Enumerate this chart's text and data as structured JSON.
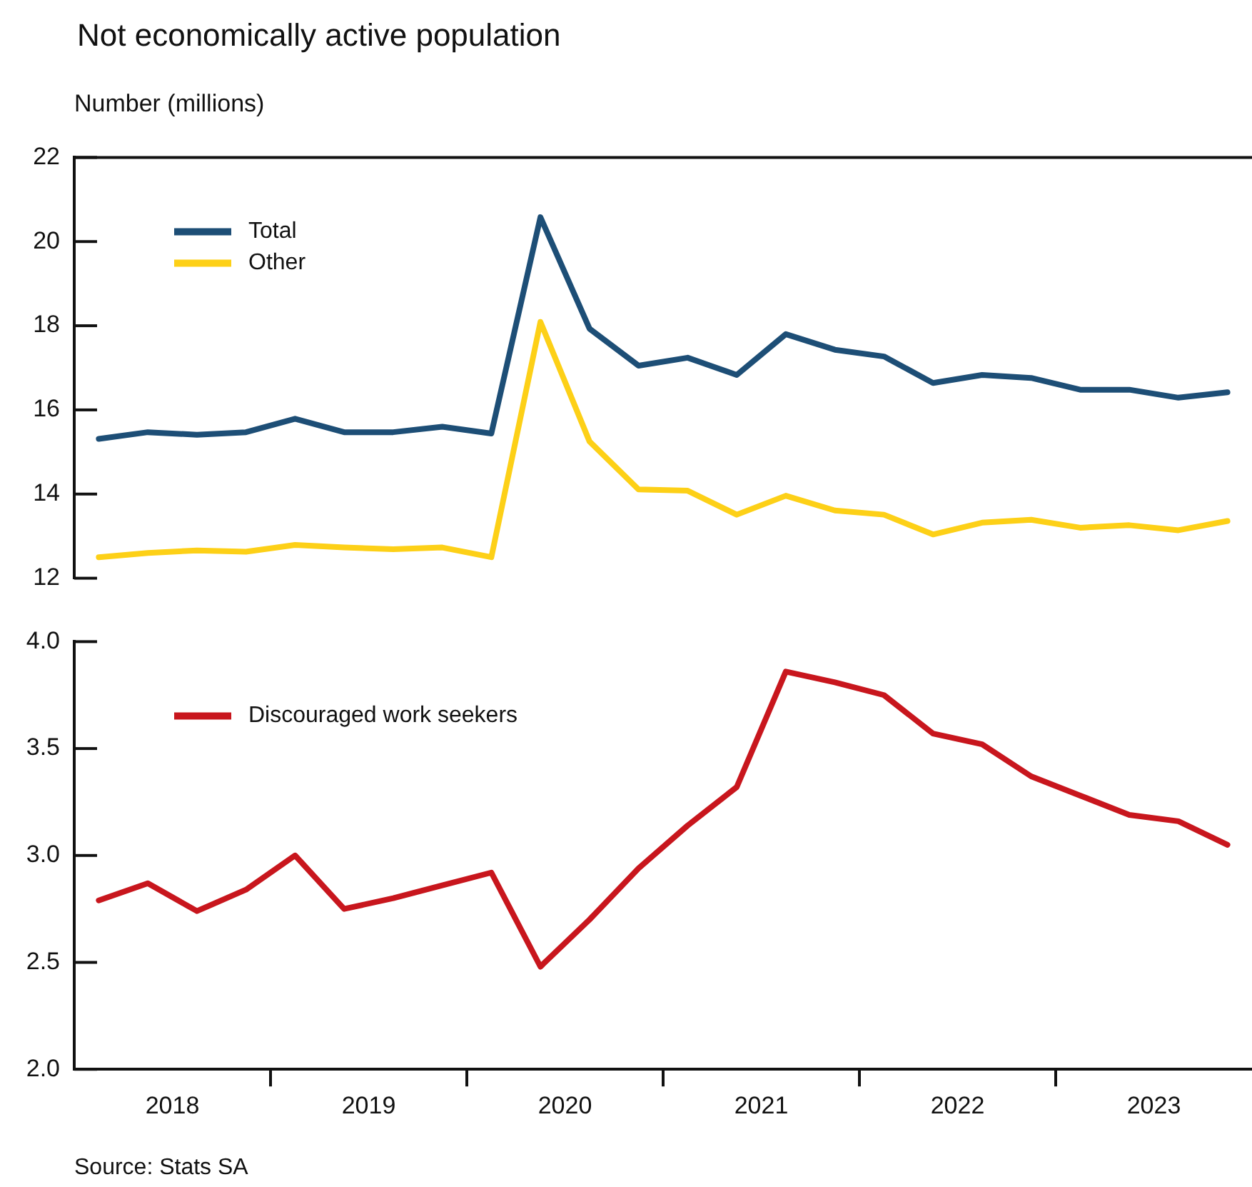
{
  "chart_data": [
    {
      "type": "line",
      "title": "Not economically active population",
      "ylabel": "Number (millions)",
      "x": [
        2018.125,
        2018.375,
        2018.625,
        2018.875,
        2019.125,
        2019.375,
        2019.625,
        2019.875,
        2020.125,
        2020.375,
        2020.625,
        2020.875,
        2021.125,
        2021.375,
        2021.625,
        2021.875,
        2022.125,
        2022.375,
        2022.625,
        2022.875,
        2023.125,
        2023.375,
        2023.625,
        2023.875
      ],
      "series": [
        {
          "name": "Total",
          "color": "#1d4e76",
          "values": [
            15.31,
            15.47,
            15.41,
            15.47,
            15.79,
            15.47,
            15.47,
            15.6,
            15.44,
            20.58,
            17.93,
            17.05,
            17.24,
            16.83,
            17.8,
            17.43,
            17.27,
            16.64,
            16.83,
            16.76,
            16.48,
            16.48,
            16.29,
            16.42
          ]
        },
        {
          "name": "Other",
          "color": "#fdd017",
          "values": [
            12.5,
            12.6,
            12.66,
            12.63,
            12.79,
            12.73,
            12.69,
            12.73,
            12.5,
            18.09,
            15.25,
            14.11,
            14.08,
            13.51,
            13.96,
            13.61,
            13.51,
            13.04,
            13.32,
            13.39,
            13.2,
            13.26,
            13.14,
            13.36
          ]
        }
      ],
      "xlim": [
        2018,
        2024
      ],
      "ylim": [
        12,
        22
      ],
      "yticks": [
        12,
        14,
        16,
        18,
        20,
        22
      ],
      "tick_labels": "y",
      "legend": "top left",
      "line_style": "solid",
      "marker": "none"
    },
    {
      "type": "line",
      "x": [
        2018.125,
        2018.375,
        2018.625,
        2018.875,
        2019.125,
        2019.375,
        2019.625,
        2019.875,
        2020.125,
        2020.375,
        2020.625,
        2020.875,
        2021.125,
        2021.375,
        2021.625,
        2021.875,
        2022.125,
        2022.375,
        2022.625,
        2022.875,
        2023.125,
        2023.375,
        2023.625,
        2023.875
      ],
      "series": [
        {
          "name": "Discouraged work seekers",
          "color": "#c8161d",
          "values": [
            2.79,
            2.87,
            2.74,
            2.84,
            3.0,
            2.75,
            2.8,
            2.86,
            2.92,
            2.48,
            2.7,
            2.94,
            3.14,
            3.32,
            3.86,
            3.81,
            3.75,
            3.57,
            3.52,
            3.37,
            3.28,
            3.19,
            3.16,
            3.05
          ]
        }
      ],
      "xlim": [
        2018,
        2024
      ],
      "xticks": [
        {
          "value": 2018.5,
          "label": "2018"
        },
        {
          "value": 2019,
          "label": null
        },
        {
          "value": 2019.5,
          "label": "2019"
        },
        {
          "value": 2020,
          "label": null
        },
        {
          "value": 2020.5,
          "label": "2020"
        },
        {
          "value": 2021,
          "label": null
        },
        {
          "value": 2021.5,
          "label": "2021"
        },
        {
          "value": 2022,
          "label": null
        },
        {
          "value": 2022.5,
          "label": "2022"
        },
        {
          "value": 2023,
          "label": null
        },
        {
          "value": 2023.5,
          "label": "2023"
        }
      ],
      "ylim": [
        2,
        4
      ],
      "yticks": [
        {
          "value": 2,
          "label": "2.0"
        },
        2.5,
        {
          "value": 3,
          "label": "3.0"
        },
        3.5,
        {
          "value": 4,
          "label": "4.0"
        }
      ],
      "legend": "top left",
      "line_style": "solid",
      "marker": "none",
      "annotations": [
        "Source: Stats SA"
      ]
    }
  ]
}
